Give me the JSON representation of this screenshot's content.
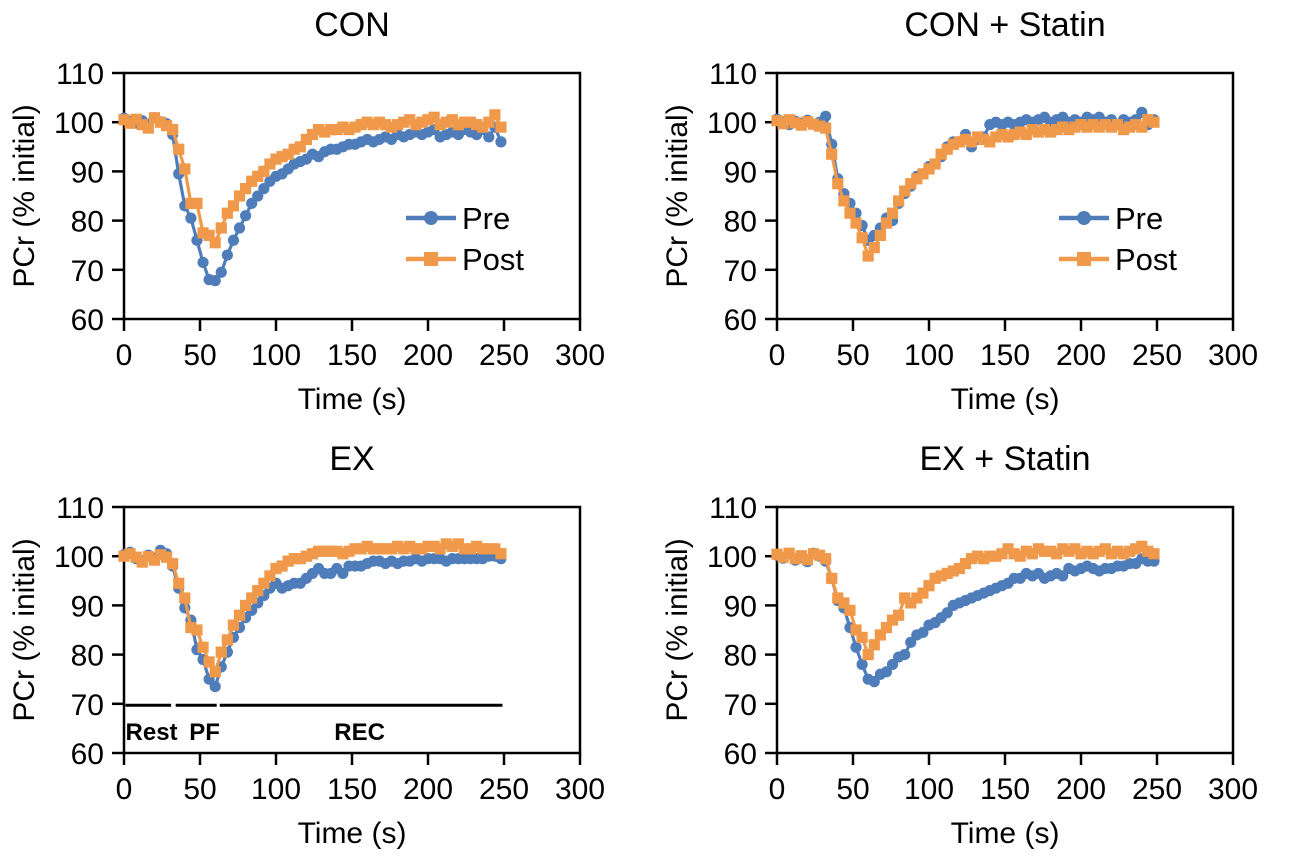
{
  "figure": {
    "background": "#ffffff",
    "axis_color": "#000000",
    "pre_color": "#4E7DBA",
    "post_color": "#F0994A",
    "y_axis_label": "PCr (% initial)",
    "x_axis_label": "Time (s)"
  },
  "chart_data": [
    {
      "type": "line",
      "title": "CON",
      "xlabel": "Time (s)",
      "ylabel": "PCr (% initial)",
      "xlim": [
        0,
        300
      ],
      "ylim": [
        60,
        110
      ],
      "x_ticks": [
        0,
        50,
        100,
        150,
        200,
        250,
        300
      ],
      "y_ticks": [
        60,
        70,
        80,
        90,
        100,
        110
      ],
      "grid": false,
      "time_step_s": 4,
      "legend": {
        "show": true,
        "position": "inside-right-center",
        "labels": [
          "Pre",
          "Post"
        ]
      },
      "series": [
        {
          "name": "Pre",
          "marker": "circle",
          "color": "#4E7DBA",
          "values": [
            100.8,
            100.2,
            99.8,
            100.3,
            99.6,
            100.9,
            100.1,
            99.7,
            97.5,
            89.5,
            83.0,
            80.5,
            76.0,
            71.5,
            68.0,
            67.8,
            69.5,
            73.0,
            76.0,
            78.5,
            81.0,
            83.5,
            85.0,
            86.5,
            88.0,
            89.0,
            89.5,
            90.5,
            91.5,
            92.0,
            92.5,
            93.5,
            93.0,
            94.0,
            94.5,
            94.5,
            95.0,
            95.5,
            95.5,
            96.0,
            96.5,
            96.0,
            96.5,
            97.0,
            96.5,
            97.5,
            97.0,
            97.5,
            98.0,
            97.5,
            98.0,
            98.5,
            97.0,
            97.5,
            98.0,
            97.5,
            98.5,
            98.0,
            97.5,
            98.5,
            97.0,
            99.0,
            96.0
          ]
        },
        {
          "name": "Post",
          "marker": "square",
          "color": "#F0994A",
          "values": [
            100.5,
            99.8,
            100.6,
            99.5,
            98.8,
            100.9,
            100.0,
            99.3,
            98.5,
            94.5,
            90.5,
            83.5,
            83.5,
            77.5,
            77.0,
            75.5,
            78.5,
            81.5,
            83.0,
            85.0,
            86.5,
            88.0,
            89.0,
            90.0,
            91.5,
            92.5,
            93.0,
            93.5,
            94.5,
            95.0,
            96.5,
            97.5,
            98.5,
            98.0,
            98.5,
            98.5,
            99.0,
            98.5,
            99.0,
            99.5,
            100.0,
            99.5,
            100.0,
            99.5,
            99.0,
            99.5,
            100.0,
            100.5,
            99.5,
            100.0,
            100.5,
            101.0,
            99.5,
            100.0,
            100.5,
            99.5,
            100.0,
            100.0,
            99.5,
            99.0,
            100.0,
            101.5,
            99.0
          ]
        }
      ]
    },
    {
      "type": "line",
      "title": "CON + Statin",
      "xlabel": "Time (s)",
      "ylabel": "PCr (% initial)",
      "xlim": [
        0,
        300
      ],
      "ylim": [
        60,
        110
      ],
      "x_ticks": [
        0,
        50,
        100,
        150,
        200,
        250,
        300
      ],
      "y_ticks": [
        60,
        70,
        80,
        90,
        100,
        110
      ],
      "grid": false,
      "time_step_s": 4,
      "legend": {
        "show": true,
        "position": "inside-right-center",
        "labels": [
          "Pre",
          "Post"
        ]
      },
      "series": [
        {
          "name": "Pre",
          "marker": "circle",
          "color": "#4E7DBA",
          "values": [
            100.6,
            100.0,
            99.5,
            100.2,
            99.8,
            100.4,
            99.6,
            100.0,
            101.2,
            95.5,
            88.5,
            85.5,
            83.5,
            81.5,
            79.0,
            76.0,
            77.0,
            78.5,
            80.5,
            80.0,
            83.5,
            85.5,
            87.0,
            89.0,
            89.5,
            91.0,
            91.5,
            93.0,
            95.0,
            96.0,
            96.0,
            97.5,
            95.0,
            96.5,
            97.0,
            99.5,
            100.0,
            99.5,
            100.0,
            99.5,
            100.0,
            100.5,
            100.0,
            100.5,
            101.0,
            100.0,
            100.5,
            101.0,
            100.0,
            100.5,
            100.0,
            101.0,
            100.5,
            101.0,
            100.0,
            100.5,
            99.5,
            100.5,
            100.0,
            100.5,
            102.0,
            99.5,
            100.5
          ]
        },
        {
          "name": "Post",
          "marker": "square",
          "color": "#F0994A",
          "values": [
            100.3,
            99.7,
            100.5,
            99.9,
            99.4,
            100.1,
            99.6,
            99.2,
            98.8,
            93.5,
            87.5,
            84.0,
            81.5,
            79.5,
            76.5,
            72.8,
            74.5,
            77.0,
            79.5,
            81.5,
            84.0,
            86.0,
            87.5,
            88.5,
            89.5,
            90.5,
            91.5,
            93.5,
            94.5,
            95.5,
            96.0,
            96.5,
            96.0,
            97.0,
            96.5,
            96.0,
            97.0,
            97.5,
            97.0,
            97.5,
            98.0,
            97.5,
            98.5,
            98.0,
            98.5,
            98.0,
            98.5,
            99.0,
            98.5,
            99.0,
            99.5,
            99.0,
            99.5,
            99.0,
            99.5,
            99.0,
            99.5,
            98.5,
            99.0,
            99.5,
            99.0,
            100.5,
            100.0
          ]
        }
      ]
    },
    {
      "type": "line",
      "title": "EX",
      "xlabel": "Time (s)",
      "ylabel": "PCr (% initial)",
      "xlim": [
        0,
        300
      ],
      "ylim": [
        60,
        110
      ],
      "x_ticks": [
        0,
        50,
        100,
        150,
        200,
        250,
        300
      ],
      "y_ticks": [
        60,
        70,
        80,
        90,
        100,
        110
      ],
      "grid": false,
      "time_step_s": 4,
      "legend": {
        "show": false
      },
      "annotation": {
        "line_y": 69.7,
        "label_y": 62.6,
        "line_color": "#000000",
        "segments_s": [
          [
            1,
            31
          ],
          [
            34,
            61
          ],
          [
            63,
            249
          ]
        ],
        "phase_labels": [
          {
            "text": "Rest",
            "t_s": 1,
            "align": "start"
          },
          {
            "text": "PF",
            "t_s": 53,
            "align": "middle"
          },
          {
            "text": "REC",
            "t_s": 155,
            "align": "middle"
          }
        ]
      },
      "series": [
        {
          "name": "Pre",
          "marker": "circle",
          "color": "#4E7DBA",
          "values": [
            100.3,
            100.8,
            99.5,
            99.0,
            100.2,
            99.6,
            101.2,
            100.5,
            98.0,
            93.5,
            89.5,
            87.0,
            81.0,
            79.0,
            75.0,
            73.5,
            77.5,
            80.5,
            83.5,
            85.5,
            87.5,
            89.0,
            90.5,
            92.0,
            93.5,
            94.5,
            93.5,
            94.0,
            94.5,
            94.5,
            95.5,
            96.5,
            97.5,
            96.5,
            96.5,
            97.5,
            96.5,
            98.0,
            98.0,
            98.0,
            98.5,
            99.0,
            99.0,
            98.5,
            99.0,
            98.5,
            99.0,
            99.0,
            99.5,
            99.0,
            99.5,
            99.5,
            99.5,
            99.0,
            99.5,
            99.5,
            99.5,
            99.5,
            99.5,
            99.5,
            100.0,
            100.0,
            99.5
          ]
        },
        {
          "name": "Post",
          "marker": "square",
          "color": "#F0994A",
          "values": [
            100.0,
            100.5,
            99.8,
            98.8,
            99.9,
            99.2,
            100.3,
            99.8,
            98.5,
            94.5,
            91.5,
            85.5,
            85.0,
            81.5,
            78.5,
            76.5,
            80.5,
            83.0,
            86.0,
            88.0,
            90.0,
            91.5,
            93.0,
            94.5,
            96.0,
            97.5,
            98.0,
            99.0,
            99.5,
            99.5,
            100.0,
            100.5,
            101.0,
            101.0,
            101.0,
            101.0,
            100.5,
            101.0,
            101.5,
            101.5,
            102.0,
            101.5,
            101.5,
            101.5,
            101.5,
            102.0,
            101.5,
            102.0,
            101.5,
            101.5,
            102.0,
            102.0,
            101.5,
            102.5,
            102.0,
            102.5,
            101.5,
            101.5,
            102.0,
            101.5,
            101.5,
            101.5,
            100.5
          ]
        }
      ]
    },
    {
      "type": "line",
      "title": "EX + Statin",
      "xlabel": "Time (s)",
      "ylabel": "PCr (% initial)",
      "xlim": [
        0,
        300
      ],
      "ylim": [
        60,
        110
      ],
      "x_ticks": [
        0,
        50,
        100,
        150,
        200,
        250,
        300
      ],
      "y_ticks": [
        60,
        70,
        80,
        90,
        100,
        110
      ],
      "grid": false,
      "time_step_s": 4,
      "legend": {
        "show": false
      },
      "series": [
        {
          "name": "Pre",
          "marker": "circle",
          "color": "#4E7DBA",
          "values": [
            100.2,
            99.6,
            100.5,
            99.2,
            99.8,
            98.9,
            100.6,
            100.0,
            99.0,
            95.5,
            91.0,
            89.5,
            85.5,
            81.5,
            78.0,
            75.0,
            74.5,
            76.0,
            76.5,
            78.0,
            79.5,
            80.0,
            82.5,
            84.0,
            84.5,
            86.0,
            86.5,
            87.5,
            88.5,
            90.0,
            90.5,
            91.0,
            91.5,
            92.0,
            92.5,
            93.0,
            93.5,
            94.0,
            94.5,
            95.5,
            95.5,
            96.5,
            96.0,
            96.5,
            95.5,
            96.0,
            96.5,
            96.0,
            97.5,
            97.0,
            97.5,
            98.0,
            97.5,
            97.0,
            97.5,
            97.5,
            98.0,
            98.0,
            98.5,
            98.5,
            99.5,
            99.0,
            99.0
          ]
        },
        {
          "name": "Post",
          "marker": "square",
          "color": "#F0994A",
          "values": [
            100.4,
            99.8,
            100.6,
            99.5,
            100.1,
            99.3,
            100.5,
            100.2,
            99.5,
            95.5,
            91.5,
            90.5,
            89.0,
            85.0,
            83.5,
            80.0,
            82.0,
            84.0,
            85.5,
            87.0,
            88.0,
            91.5,
            90.5,
            91.5,
            92.5,
            94.0,
            95.5,
            96.0,
            96.5,
            97.0,
            97.5,
            98.5,
            99.5,
            100.0,
            99.5,
            100.0,
            100.0,
            100.5,
            101.5,
            100.5,
            100.0,
            101.0,
            100.5,
            101.5,
            101.0,
            101.0,
            100.5,
            101.5,
            101.0,
            101.5,
            100.5,
            101.0,
            100.5,
            101.0,
            101.5,
            100.5,
            101.0,
            100.5,
            101.0,
            101.5,
            102.0,
            101.0,
            100.5
          ]
        }
      ]
    }
  ]
}
